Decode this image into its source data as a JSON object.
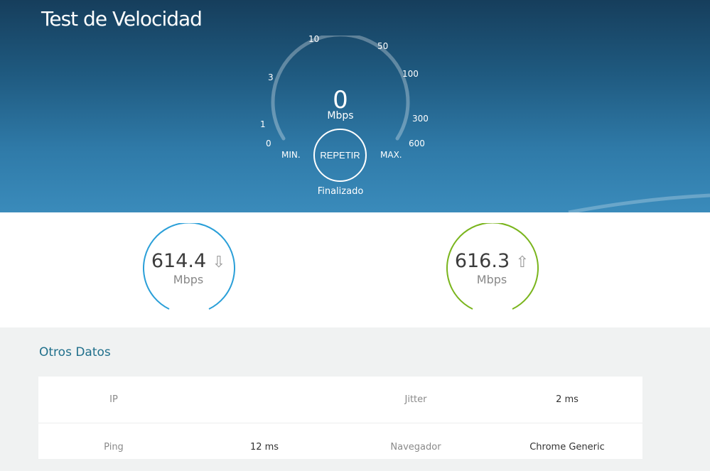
{
  "header": {
    "title": "Test de Velocidad"
  },
  "gauge": {
    "ticks": [
      "0",
      "1",
      "3",
      "10",
      "50",
      "100",
      "300",
      "600"
    ],
    "min_label": "MIN.",
    "max_label": "MAX.",
    "value": "0",
    "unit": "Mbps",
    "button": "REPETIR",
    "status": "Finalizado"
  },
  "results": {
    "download": {
      "value": "614.4",
      "unit": "Mbps",
      "icon": "arrow-down-icon",
      "color": "#2a9fd8"
    },
    "upload": {
      "value": "616.3",
      "unit": "Mbps",
      "icon": "arrow-up-icon",
      "color": "#7ab51d"
    }
  },
  "other": {
    "title": "Otros Datos",
    "rows": [
      [
        {
          "label": "IP",
          "value": ""
        },
        {
          "label": "Jitter",
          "value": "2 ms"
        }
      ],
      [
        {
          "label": "Ping",
          "value": "12 ms"
        },
        {
          "label": "Navegador",
          "value": "Chrome Generic"
        }
      ]
    ]
  }
}
